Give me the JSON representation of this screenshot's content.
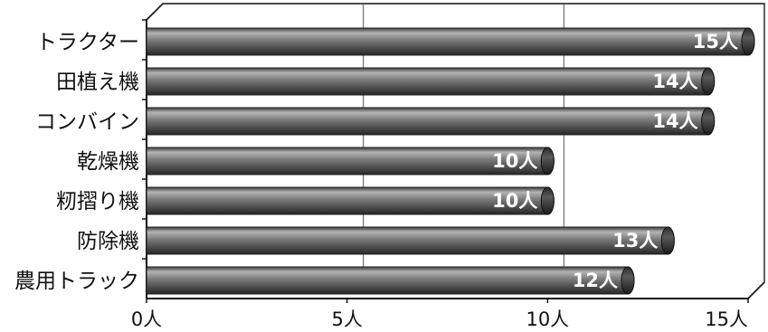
{
  "chart_data": {
    "type": "bar",
    "orientation": "horizontal",
    "style": "3d-cylinder",
    "categories": [
      "トラクター",
      "田植え機",
      "コンバイン",
      "乾燥機",
      "籾摺り機",
      "防除機",
      "農用トラック"
    ],
    "values": [
      15,
      14,
      14,
      10,
      10,
      13,
      12
    ],
    "data_labels": [
      "15人",
      "14人",
      "14人",
      "10人",
      "10人",
      "13人",
      "12人"
    ],
    "xlim": [
      0,
      15
    ],
    "x_ticks": [
      0,
      5,
      10,
      15
    ],
    "x_tick_labels": [
      "0人",
      "5人",
      "10人",
      "15人"
    ],
    "grid": true,
    "title": "",
    "xlabel": "",
    "ylabel": ""
  },
  "colors": {
    "bar_body": "#555555",
    "bar_end": "#2a2a2a",
    "axis": "#111111",
    "grid": "#555555"
  }
}
